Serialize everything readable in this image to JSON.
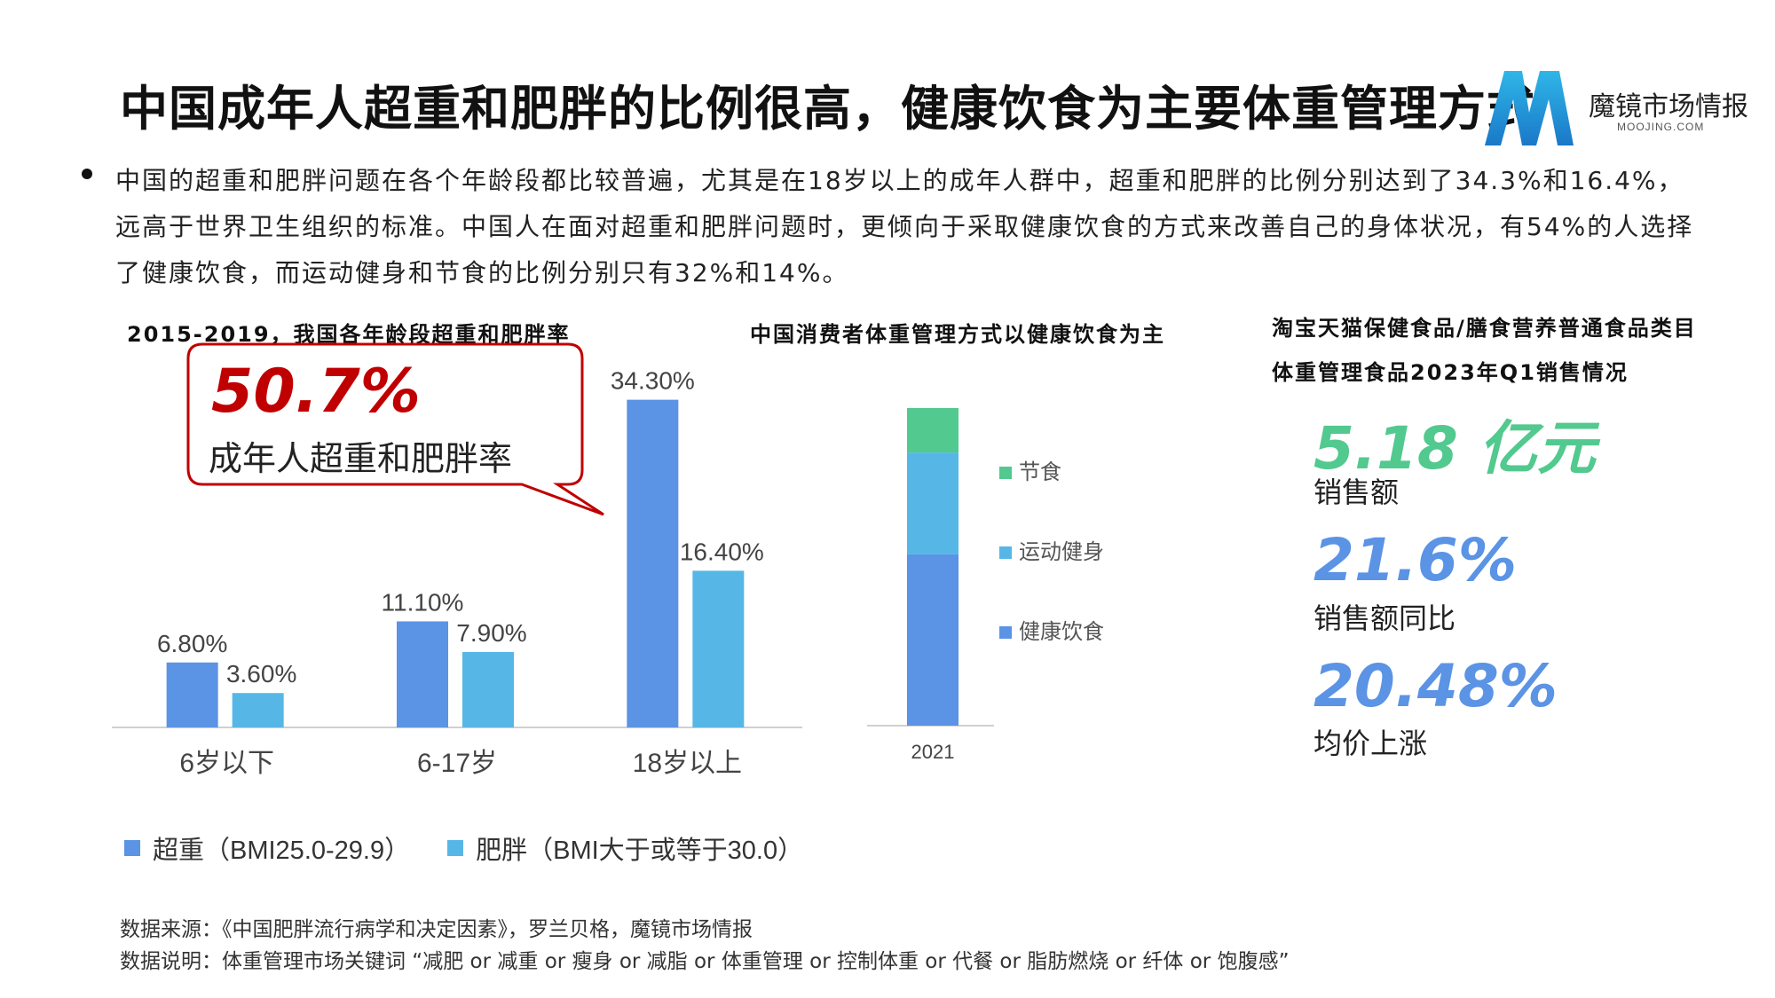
{
  "header": {
    "title": "中国成年人超重和肥胖的比例很高，健康饮食为主要体重管理方式",
    "logo_text": "魔镜市场情报",
    "logo_sub": "MOOJING.COM"
  },
  "intro": "中国的超重和肥胖问题在各个年龄段都比较普遍，尤其是在18岁以上的成年人群中，超重和肥胖的比例分别达到了34.3%和16.4%，远高于世界卫生组织的标准。中国人在面对超重和肥胖问题时，更倾向于采取健康饮食的方式来改善自己的身体状况，有54%的人选择了健康饮食，而运动健身和节食的比例分别只有32%和14%。",
  "callout": {
    "value": "50.7%",
    "label": "成年人超重和肥胖率"
  },
  "colors": {
    "overweight": "#5B93E5",
    "obese": "#56B7E6",
    "diet": "#5B93E5",
    "exercise": "#56B7E6",
    "fasting": "#52C98E",
    "kpi_green": "#52C98E",
    "kpi_blue": "#5B93E5",
    "callout_red": "#C00000"
  },
  "chart_data": [
    {
      "type": "bar",
      "title": "2015-2019，我国各年龄段超重和肥胖率",
      "categories": [
        "6岁以下",
        "6-17岁",
        "18岁以上"
      ],
      "series": [
        {
          "name": "超重（BMI25.0-29.9）",
          "values": [
            6.8,
            11.1,
            34.3
          ],
          "labels": [
            "6.80%",
            "11.10%",
            "34.30%"
          ]
        },
        {
          "name": "肥胖（BMI大于或等于30.0）",
          "values": [
            3.6,
            7.9,
            16.4
          ],
          "labels": [
            "3.60%",
            "7.90%",
            "16.40%"
          ]
        }
      ],
      "ylim": [
        0,
        36
      ]
    },
    {
      "type": "bar",
      "stacked": true,
      "title": "中国消费者体重管理方式以健康饮食为主",
      "categories": [
        "2021"
      ],
      "series": [
        {
          "name": "健康饮食",
          "values": [
            54
          ]
        },
        {
          "name": "运动健身",
          "values": [
            32
          ]
        },
        {
          "name": "节食",
          "values": [
            14
          ]
        }
      ],
      "ylim": [
        0,
        100
      ],
      "legend": "right"
    }
  ],
  "kpi": {
    "title_line1": "淘宝天猫保健食品/膳食营养普通食品类目",
    "title_line2": "体重管理食品2023年Q1销售情况",
    "items": [
      {
        "value": "5.18 亿元",
        "label": "销售额"
      },
      {
        "value": "21.6%",
        "label": "销售额同比"
      },
      {
        "value": "20.48%",
        "label": "均价上涨"
      }
    ]
  },
  "footer": {
    "source": "数据来源：《中国肥胖流行病学和决定因素》，罗兰贝格，魔镜市场情报",
    "note": "数据说明：体重管理市场关键词 “减肥 or 减重 or 瘦身 or 减脂 or 体重管理 or 控制体重 or 代餐 or 脂肪燃烧 or 纤体 or 饱腹感”"
  }
}
